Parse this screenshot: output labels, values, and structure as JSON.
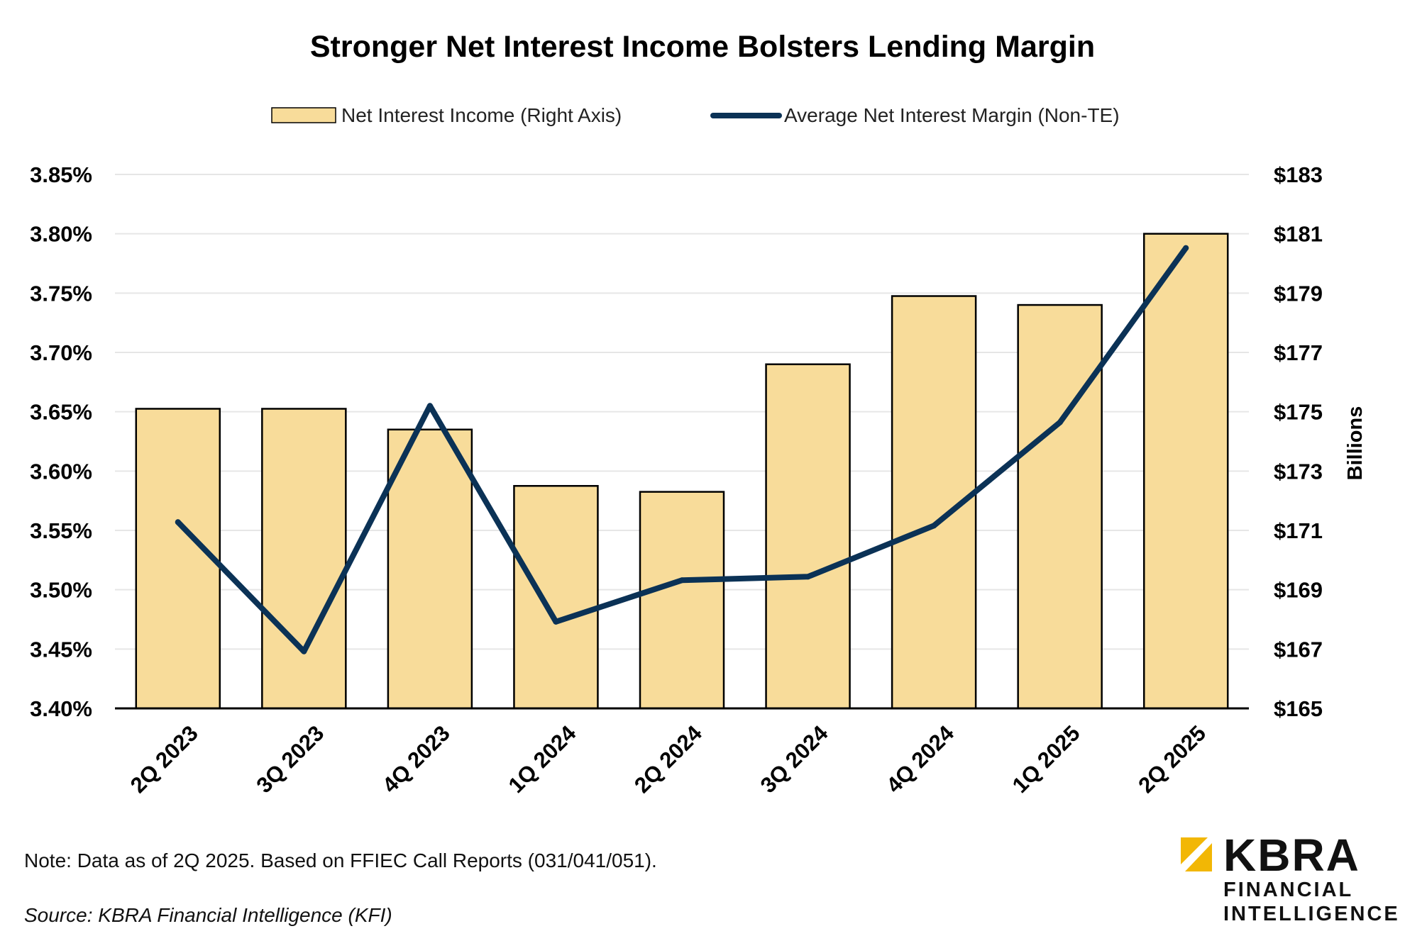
{
  "chart_data": {
    "type": "bar+line",
    "title": "Stronger Net Interest Income Bolsters Lending Margin",
    "categories": [
      "2Q 2023",
      "3Q 2023",
      "4Q 2023",
      "1Q 2024",
      "2Q 2024",
      "3Q 2024",
      "4Q 2024",
      "1Q 2025",
      "2Q 2025"
    ],
    "series": [
      {
        "name": "Net Interest Income (Right Axis)",
        "type": "bar",
        "axis": "right",
        "color": "#F8DC9A",
        "values": [
          175.1,
          175.1,
          174.4,
          172.5,
          172.3,
          176.6,
          178.9,
          178.6,
          181.0
        ]
      },
      {
        "name": "Average Net Interest Margin (Non-TE)",
        "type": "line",
        "axis": "left",
        "color": "#0B3256",
        "values": [
          3.557,
          3.448,
          3.655,
          3.473,
          3.508,
          3.511,
          3.554,
          3.641,
          3.788
        ]
      }
    ],
    "y_left": {
      "min": 3.4,
      "max": 3.85,
      "step": 0.05,
      "tick_labels": [
        "3.40%",
        "3.45%",
        "3.50%",
        "3.55%",
        "3.60%",
        "3.65%",
        "3.70%",
        "3.75%",
        "3.80%",
        "3.85%"
      ]
    },
    "y_right": {
      "min": 165,
      "max": 183,
      "step": 2,
      "label": "Billions",
      "tick_labels": [
        "$165",
        "$167",
        "$169",
        "$171",
        "$173",
        "$175",
        "$177",
        "$179",
        "$181",
        "$183"
      ]
    },
    "grid": true,
    "legend_position": "top-center"
  },
  "footer": {
    "note": "Note: Data as of 2Q 2025. Based on FFIEC Call Reports (031/041/051).",
    "source": "Source: KBRA Financial Intelligence (KFI)"
  },
  "logo": {
    "name": "KBRA",
    "line1": "FINANCIAL",
    "line2": "INTELLIGENCE",
    "accent_color": "#F2B705"
  }
}
